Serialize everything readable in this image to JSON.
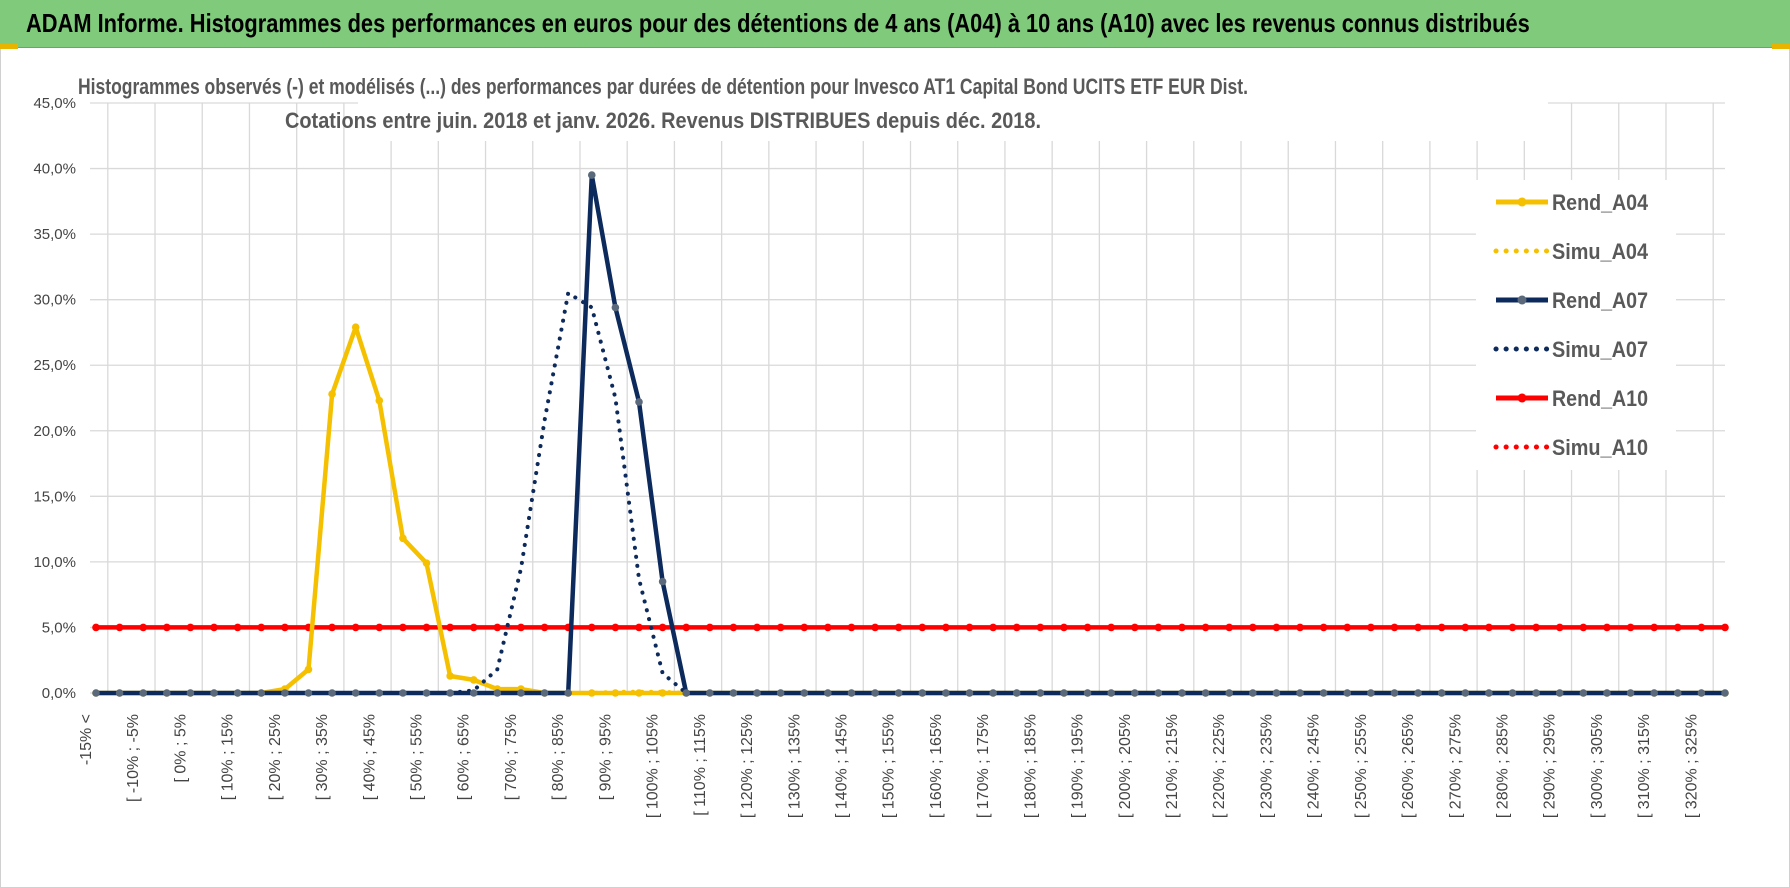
{
  "banner": {
    "title": "ADAM Informe. Histogrammes des performances en euros pour des détentions de 4 ans (A04) à 10 ans (A10) avec les revenus connus distribués"
  },
  "colors": {
    "banner": "#7fca7b",
    "A04": "#f5c000",
    "A07": "#0d2a5c",
    "A07_marker": "#5a6a7c",
    "A10": "#ff0000",
    "grid": "#d9d9d9"
  },
  "chart_data": {
    "type": "line",
    "title_line1": "Histogrammes observés (-) et modélisés (...) des performances par durées de détention pour Invesco AT1 Capital Bond UCITS ETF EUR Dist.",
    "title_line2": "Cotations entre juin. 2018 et janv. 2026. Revenus DISTRIBUES depuis déc. 2018.",
    "ylim": [
      0,
      45
    ],
    "y_ticks": [
      "0,0%",
      "5,0%",
      "10,0%",
      "15,0%",
      "20,0%",
      "25,0%",
      "30,0%",
      "35,0%",
      "40,0%",
      "45,0%"
    ],
    "grid": true,
    "legend_position": "right",
    "x_labels": [
      "-15% <",
      "[ -10% ; -5%",
      "[ 0% ; 5%",
      "[ 10% ; 15%",
      "[ 20% ; 25%",
      "[ 30% ; 35%",
      "[ 40% ; 45%",
      "[ 50% ; 55%",
      "[ 60% ; 65%",
      "[ 70% ; 75%",
      "[ 80% ; 85%",
      "[ 90% ; 95%",
      "[ 100% ; 105%",
      "[ 110% ; 115%",
      "[ 120% ; 125%",
      "[ 130% ; 135%",
      "[ 140% ; 145%",
      "[ 150% ; 155%",
      "[ 160% ; 165%",
      "[ 170% ; 175%",
      "[ 180% ; 185%",
      "[ 190% ; 195%",
      "[ 200% ; 205%",
      "[ 210% ; 215%",
      "[ 220% ; 225%",
      "[ 230% ; 235%",
      "[ 240% ; 245%",
      "[ 250% ; 255%",
      "[ 260% ; 265%",
      "[ 270% ; 275%",
      "[ 280% ; 285%",
      "[ 290% ; 295%",
      "[ 300% ; 305%",
      "[ 310% ; 315%",
      "[ 320% ; 325%"
    ],
    "n_points": 70,
    "series": [
      {
        "name": "Rend_A04",
        "style": "solid",
        "color": "#f5c000",
        "values": [
          0,
          0,
          0,
          0,
          0,
          0,
          0,
          0,
          0.3,
          1.8,
          22.8,
          27.9,
          22.3,
          11.8,
          9.9,
          1.3,
          1.0,
          0.3,
          0.3,
          0,
          0,
          0,
          0,
          0,
          0,
          0,
          0,
          0,
          0,
          0,
          0,
          0,
          0,
          0,
          0,
          0,
          0,
          0,
          0,
          0,
          0,
          0,
          0,
          0,
          0,
          0,
          0,
          0,
          0,
          0,
          0,
          0,
          0,
          0,
          0,
          0,
          0,
          0,
          0,
          0,
          0,
          0,
          0,
          0,
          0,
          0,
          0,
          0,
          0,
          0
        ]
      },
      {
        "name": "Simu_A04",
        "style": "dotted",
        "color": "#f5c000",
        "values": [
          0,
          0,
          0,
          0,
          0,
          0,
          0,
          0,
          0,
          0,
          0,
          0,
          0,
          0,
          0,
          0,
          0,
          0,
          0,
          0,
          0,
          0,
          0.1,
          0.1,
          0.1,
          0,
          0,
          0,
          0,
          0,
          0,
          0,
          0,
          0,
          0,
          0,
          0,
          0,
          0,
          0,
          0,
          0,
          0,
          0,
          0,
          0,
          0,
          0,
          0,
          0,
          0,
          0,
          0,
          0,
          0,
          0,
          0,
          0,
          0,
          0,
          0,
          0,
          0,
          0,
          0,
          0,
          0,
          0,
          0,
          0
        ]
      },
      {
        "name": "Rend_A07",
        "style": "solid",
        "color": "#0d2a5c",
        "values": [
          0,
          0,
          0,
          0,
          0,
          0,
          0,
          0,
          0,
          0,
          0,
          0,
          0,
          0,
          0,
          0,
          0,
          0,
          0,
          0,
          0,
          39.5,
          29.4,
          22.2,
          8.5,
          0,
          0,
          0,
          0,
          0,
          0,
          0,
          0,
          0,
          0,
          0,
          0,
          0,
          0,
          0,
          0,
          0,
          0,
          0,
          0,
          0,
          0,
          0,
          0,
          0,
          0,
          0,
          0,
          0,
          0,
          0,
          0,
          0,
          0,
          0,
          0,
          0,
          0,
          0,
          0,
          0,
          0,
          0,
          0,
          0
        ]
      },
      {
        "name": "Simu_A07",
        "style": "dotted",
        "color": "#0d2a5c",
        "values": [
          0,
          0,
          0,
          0,
          0,
          0,
          0,
          0,
          0,
          0,
          0,
          0,
          0,
          0,
          0,
          0,
          0.2,
          1.8,
          9.5,
          20.8,
          30.5,
          29.4,
          22.5,
          8.7,
          1.5,
          0,
          0,
          0,
          0,
          0,
          0,
          0,
          0,
          0,
          0,
          0,
          0,
          0,
          0,
          0,
          0,
          0,
          0,
          0,
          0,
          0,
          0,
          0,
          0,
          0,
          0,
          0,
          0,
          0,
          0,
          0,
          0,
          0,
          0,
          0,
          0,
          0,
          0,
          0,
          0,
          0,
          0,
          0,
          0,
          0
        ]
      },
      {
        "name": "Rend_A10",
        "style": "solid",
        "color": "#ff0000",
        "values": [
          5,
          5,
          5,
          5,
          5,
          5,
          5,
          5,
          5,
          5,
          5,
          5,
          5,
          5,
          5,
          5,
          5,
          5,
          5,
          5,
          5,
          5,
          5,
          5,
          5,
          5,
          5,
          5,
          5,
          5,
          5,
          5,
          5,
          5,
          5,
          5,
          5,
          5,
          5,
          5,
          5,
          5,
          5,
          5,
          5,
          5,
          5,
          5,
          5,
          5,
          5,
          5,
          5,
          5,
          5,
          5,
          5,
          5,
          5,
          5,
          5,
          5,
          5,
          5,
          5,
          5,
          5,
          5,
          5,
          5
        ]
      },
      {
        "name": "Simu_A10",
        "style": "dotted",
        "color": "#ff0000",
        "values": [
          0,
          0,
          0,
          0,
          0,
          0,
          0,
          0,
          0,
          0,
          0,
          0,
          0,
          0,
          0,
          0,
          0,
          0,
          0,
          0,
          0,
          0,
          0,
          0,
          0,
          0,
          0,
          0,
          0,
          0,
          0,
          0,
          0,
          0,
          0,
          0,
          0,
          0,
          0,
          0,
          0,
          0,
          0,
          0,
          0,
          0,
          0,
          0,
          0,
          0,
          0,
          0,
          0,
          0,
          0,
          0,
          0,
          0,
          0,
          0,
          0,
          0,
          0,
          0,
          0,
          0,
          0,
          0,
          0,
          0
        ]
      }
    ]
  }
}
